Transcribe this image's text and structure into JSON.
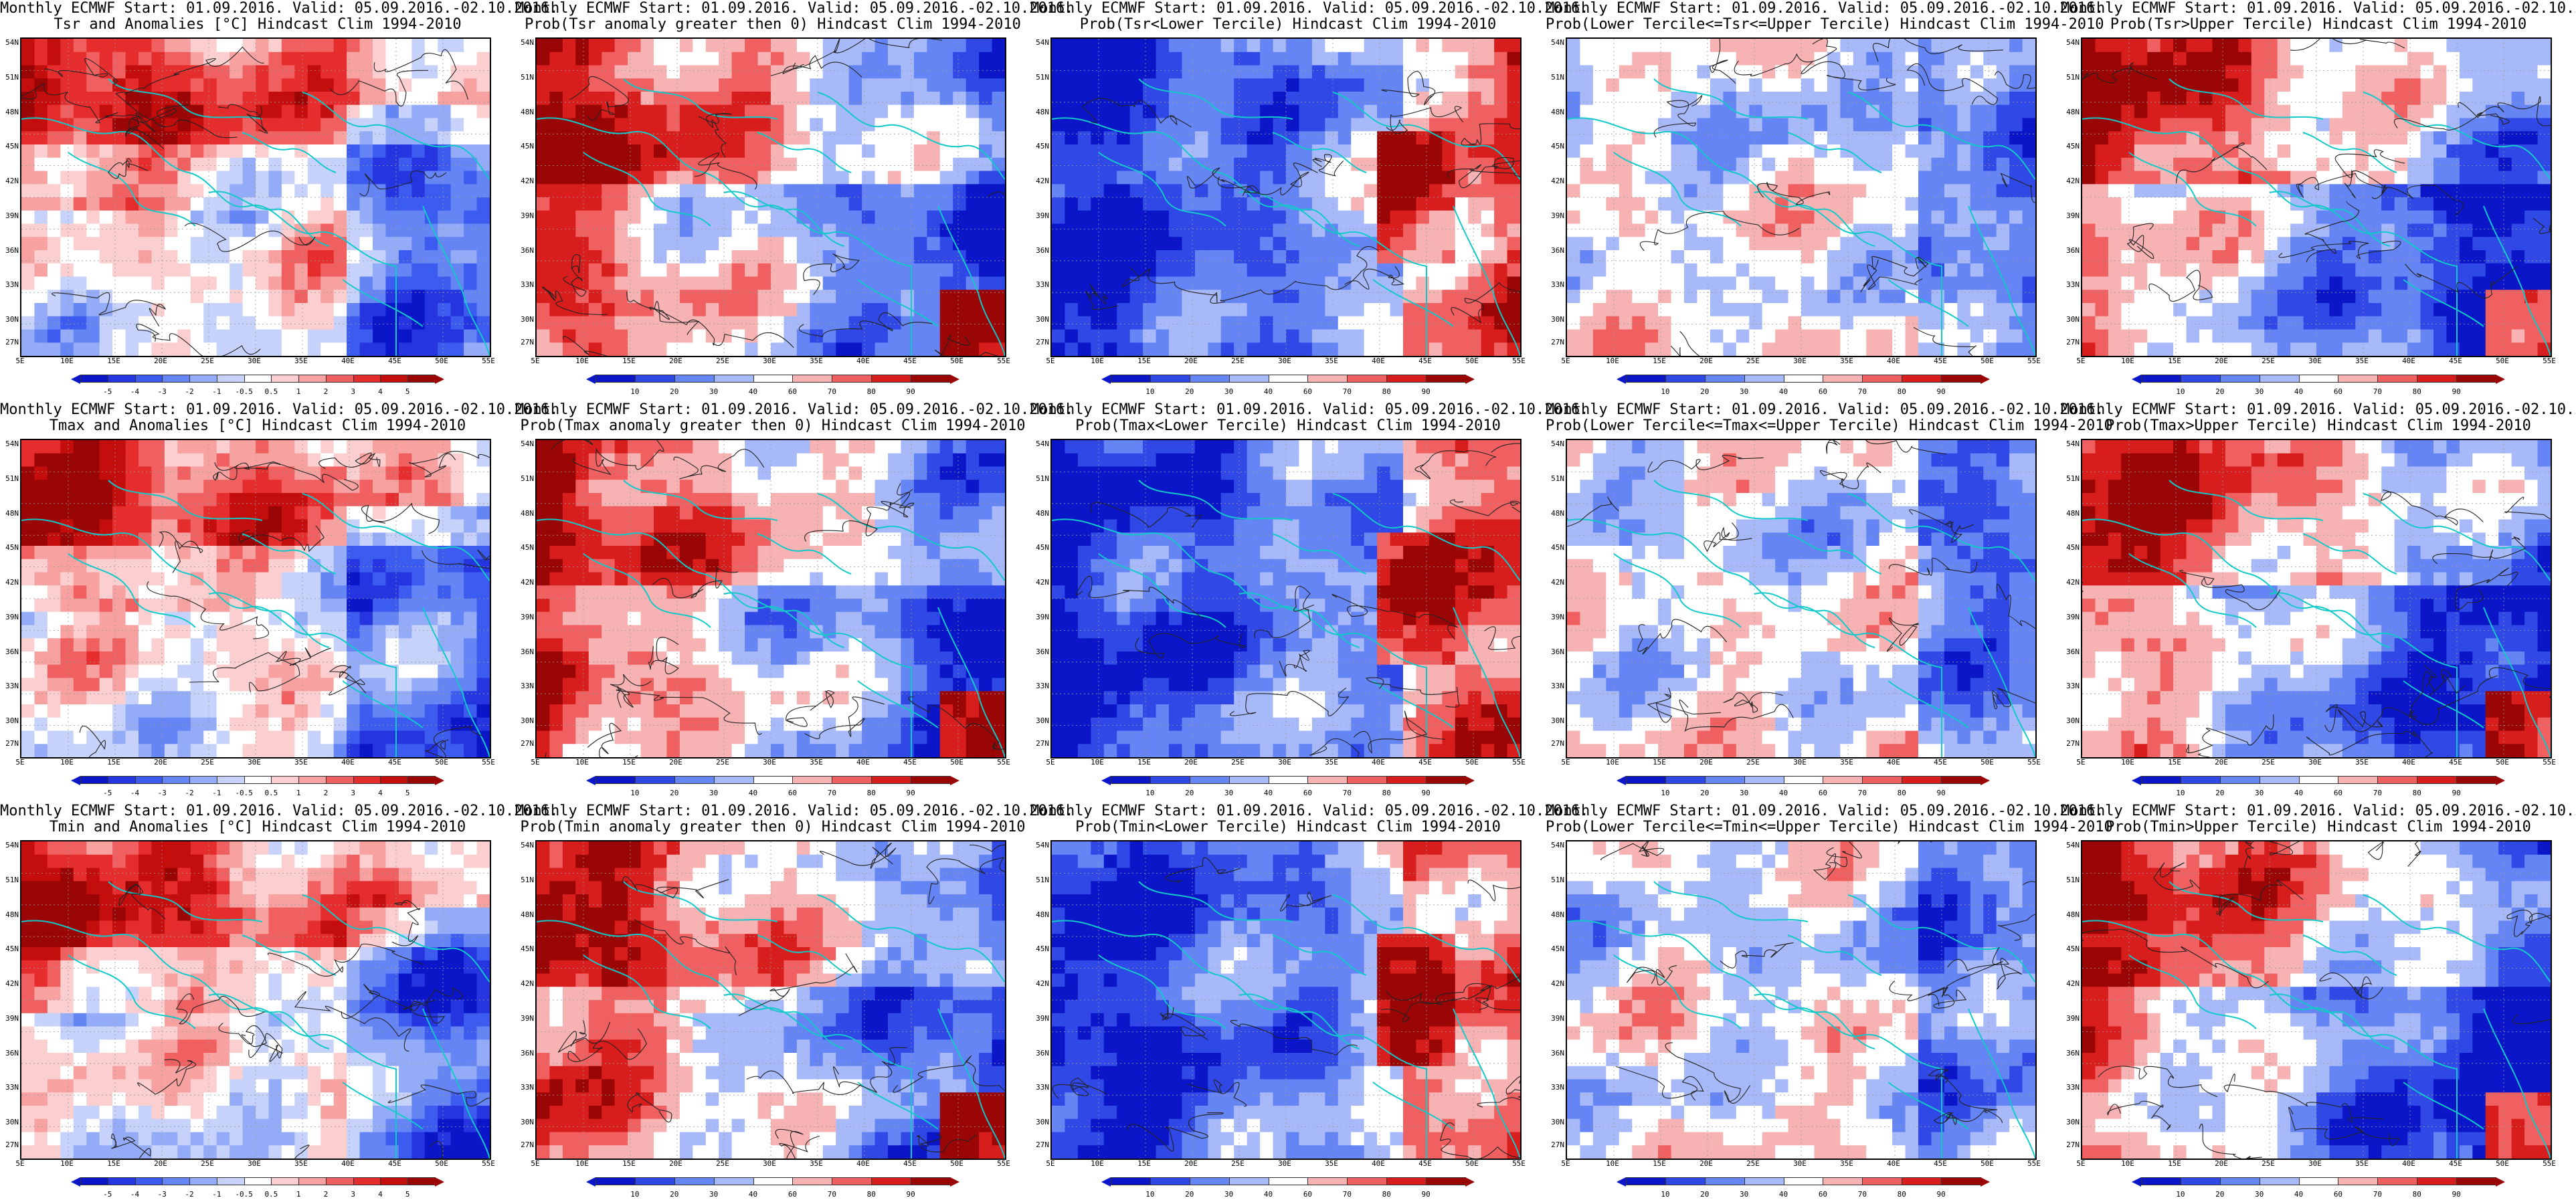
{
  "title_line1": "Monthly ECMWF Start: 01.09.2016. Valid: 05.09.2016.-02.10.2016.",
  "lat_labels": [
    "54N",
    "51N",
    "48N",
    "45N",
    "42N",
    "39N",
    "36N",
    "33N",
    "30N",
    "27N"
  ],
  "lon_labels": [
    "5E",
    "10E",
    "15E",
    "20E",
    "25E",
    "30E",
    "35E",
    "40E",
    "45E",
    "50E",
    "55E"
  ],
  "colorbars": {
    "anomaly_tsr_tmax": {
      "labels": [
        "-5",
        "-4",
        "-3",
        "-2",
        "-1",
        "-0.5",
        "0.5",
        "1",
        "2",
        "3",
        "4",
        "5"
      ],
      "colors": [
        "#0a16c7",
        "#2536e0",
        "#3c5cf0",
        "#6585f5",
        "#94acf7",
        "#c6d2fa",
        "#ffffff",
        "#fbcfcf",
        "#f7a1a1",
        "#f06060",
        "#e62d2d",
        "#c40d0d",
        "#9a0505"
      ]
    },
    "anomaly_tmin": {
      "labels": [
        "-5",
        "-4",
        "-3",
        "-2",
        "-1",
        "-0.5",
        "0.5",
        "1",
        "2",
        "3",
        "4",
        "5"
      ],
      "colors": [
        "#0a16c7",
        "#2536e0",
        "#3c5cf0",
        "#6585f5",
        "#94acf7",
        "#c6d2fa",
        "#ffffff",
        "#fbcfcf",
        "#f7a1a1",
        "#f06060",
        "#e62d2d",
        "#c40d0d",
        "#9a0505"
      ]
    },
    "probability": {
      "labels": [
        "10",
        "20",
        "30",
        "40",
        "60",
        "70",
        "80",
        "90"
      ],
      "colors": [
        "#0a16c7",
        "#2f48e6",
        "#6585f5",
        "#a7b9f8",
        "#ffffff",
        "#f7b3b3",
        "#f06060",
        "#d81d1d",
        "#9a0505"
      ]
    }
  },
  "panels": [
    {
      "id": "r1c1",
      "title2": "Tsr and Anomalies [°C] Hindcast Clim 1994-2010",
      "cbar": "anomaly_tsr_tmax",
      "field": "anom",
      "seed": 1
    },
    {
      "id": "r1c2",
      "title2": "Prob(Tsr anomaly greater then 0) Hindcast Clim 1994-2010",
      "cbar": "probability",
      "field": "warm",
      "seed": 2
    },
    {
      "id": "r1c3",
      "title2": "Prob(Tsr<Lower Tercile) Hindcast Clim 1994-2010",
      "cbar": "probability",
      "field": "cold",
      "seed": 3
    },
    {
      "id": "r1c4",
      "title2": "Prob(Lower Tercile<=Tsr<=Upper Tercile) Hindcast Clim 1994-2010",
      "cbar": "probability",
      "field": "mid",
      "seed": 4
    },
    {
      "id": "r1c5",
      "title2": "Prob(Tsr>Upper Tercile) Hindcast Clim 1994-2010",
      "cbar": "probability",
      "field": "upper",
      "seed": 5
    },
    {
      "id": "r2c1",
      "title2": "Tmax and Anomalies [°C] Hindcast Clim 1994-2010",
      "cbar": "anomaly_tsr_tmax",
      "field": "anom",
      "seed": 6
    },
    {
      "id": "r2c2",
      "title2": "Prob(Tmax anomaly greater then 0) Hindcast Clim 1994-2010",
      "cbar": "probability",
      "field": "warm",
      "seed": 7
    },
    {
      "id": "r2c3",
      "title2": "Prob(Tmax<Lower Tercile) Hindcast Clim 1994-2010",
      "cbar": "probability",
      "field": "cold",
      "seed": 8
    },
    {
      "id": "r2c4",
      "title2": "Prob(Lower Tercile<=Tmax<=Upper Tercile) Hindcast Clim 1994-2010",
      "cbar": "probability",
      "field": "mid",
      "seed": 9
    },
    {
      "id": "r2c5",
      "title2": "Prob(Tmax>Upper Tercile) Hindcast Clim 1994-2010",
      "cbar": "probability",
      "field": "upper",
      "seed": 10
    },
    {
      "id": "r3c1",
      "title2": "Tmin and Anomalies [°C] Hindcast Clim 1994-2010",
      "cbar": "anomaly_tmin",
      "field": "anom",
      "seed": 11
    },
    {
      "id": "r3c2",
      "title2": "Prob(Tmin anomaly greater then 0) Hindcast Clim 1994-2010",
      "cbar": "probability",
      "field": "warm",
      "seed": 12
    },
    {
      "id": "r3c3",
      "title2": "Prob(Tmin<Lower Tercile) Hindcast Clim 1994-2010",
      "cbar": "probability",
      "field": "cold",
      "seed": 13
    },
    {
      "id": "r3c4",
      "title2": "Prob(Lower Tercile<=Tmin<=Upper Tercile) Hindcast Clim 1994-2010",
      "cbar": "probability",
      "field": "mid",
      "seed": 14
    },
    {
      "id": "r3c5",
      "title2": "Prob(Tmin>Upper Tercile) Hindcast Clim 1994-2010",
      "cbar": "probability",
      "field": "upper",
      "seed": 15
    }
  ]
}
